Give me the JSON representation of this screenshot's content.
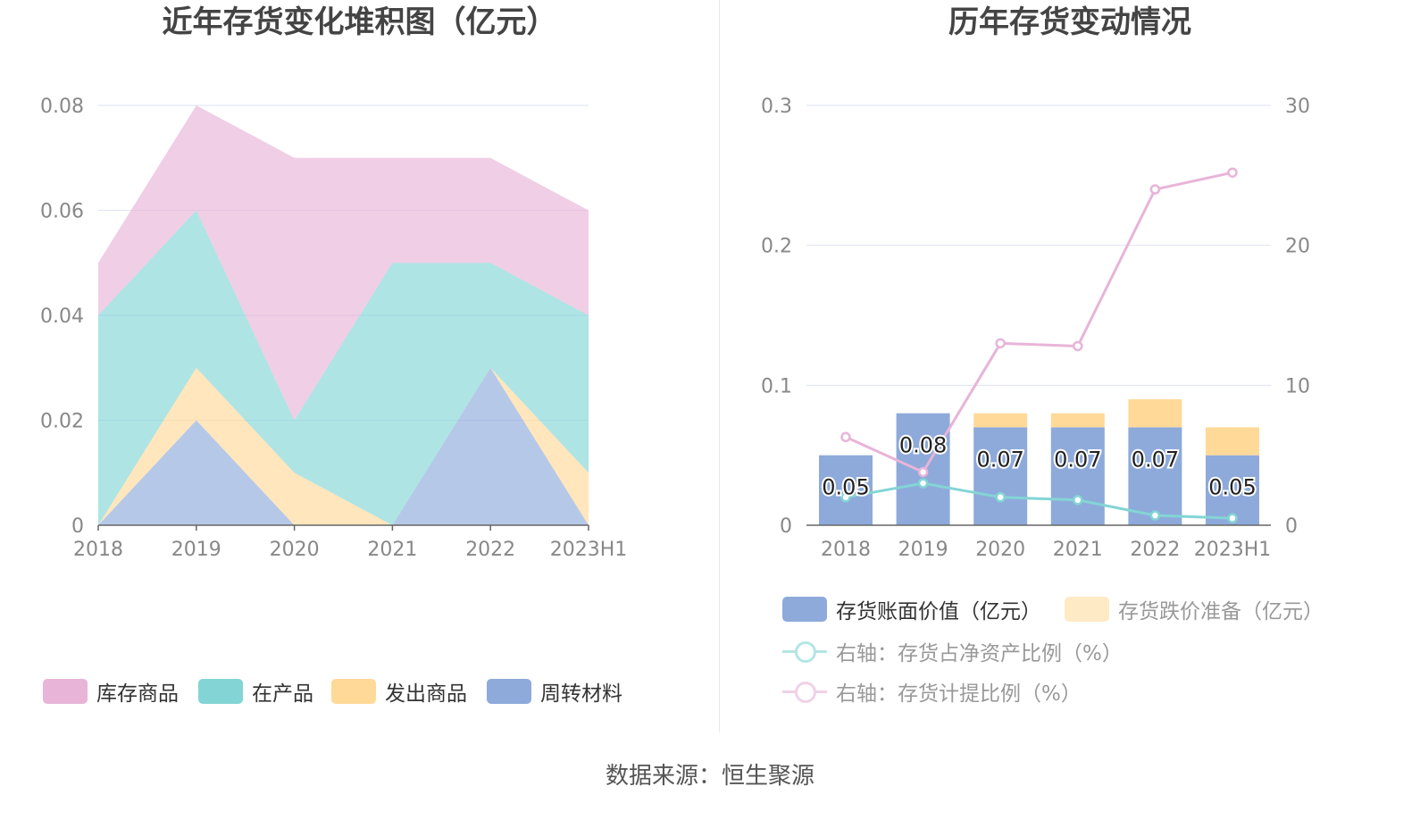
{
  "chart_data": [
    {
      "type": "area",
      "title": "近年存货变化堆积图（亿元）",
      "categories": [
        "2018",
        "2019",
        "2020",
        "2021",
        "2022",
        "2023H1"
      ],
      "stacked": true,
      "ylim": [
        0,
        0.08
      ],
      "yticks": [
        "0",
        "0.02",
        "0.04",
        "0.06",
        "0.08"
      ],
      "grid": true,
      "legend_position": "bottom",
      "series": [
        {
          "name": "周转材料",
          "color": "#8eaadb",
          "values": [
            0,
            0.02,
            0,
            0,
            0.03,
            0
          ]
        },
        {
          "name": "发出商品",
          "color": "#ffd998",
          "values": [
            0,
            0.01,
            0.01,
            0,
            0,
            0.01
          ]
        },
        {
          "name": "在产品",
          "color": "#83d5d5",
          "values": [
            0.04,
            0.03,
            0.01,
            0.05,
            0.02,
            0.03
          ]
        },
        {
          "name": "库存商品",
          "color": "#e8b4d8",
          "values": [
            0.01,
            0.02,
            0.05,
            0.02,
            0.02,
            0.02
          ]
        }
      ],
      "legend_order": [
        "库存商品",
        "在产品",
        "发出商品",
        "周转材料"
      ]
    },
    {
      "type": "bar",
      "title": "历年存货变动情况",
      "categories": [
        "2018",
        "2019",
        "2020",
        "2021",
        "2022",
        "2023H1"
      ],
      "stacked": true,
      "ylim": [
        0,
        0.3
      ],
      "yticks": [
        "0",
        "0.1",
        "0.2",
        "0.3"
      ],
      "y2lim": [
        0,
        30
      ],
      "y2ticks": [
        "0",
        "10",
        "20",
        "30"
      ],
      "grid": true,
      "legend_position": "bottom",
      "series": [
        {
          "name": "存货账面价值（亿元）",
          "kind": "bar",
          "color": "#8eaadb",
          "values": [
            0.05,
            0.08,
            0.07,
            0.07,
            0.07,
            0.05
          ],
          "labels": [
            "0.05",
            "0.08",
            "0.07",
            "0.07",
            "0.07",
            "0.05"
          ]
        },
        {
          "name": "存货跌价准备（亿元）",
          "kind": "bar",
          "color": "#ffd998",
          "values": [
            0,
            0,
            0.01,
            0.01,
            0.02,
            0.02
          ]
        },
        {
          "name": "右轴：存货占净资产比例（%）",
          "kind": "line",
          "axis": "right",
          "color": "#83d5d5",
          "values": [
            2.0,
            3.0,
            2.0,
            1.8,
            0.7,
            0.5
          ]
        },
        {
          "name": "右轴：存货计提比例（%）",
          "kind": "line",
          "axis": "right",
          "color": "#e8b4d8",
          "values": [
            6.3,
            3.8,
            13.0,
            12.8,
            24.0,
            25.2
          ]
        }
      ]
    }
  ],
  "source": "数据来源：恒生聚源"
}
